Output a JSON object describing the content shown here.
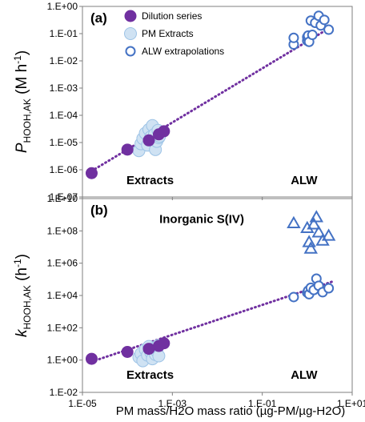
{
  "figure": {
    "xlabel": "PM mass/H2O mass ratio (µg-PM/µg-H2O)",
    "colors": {
      "dilution": "#7030a0",
      "extract_fill": "#cfe2f3",
      "extract_edge": "#9dc3e6",
      "alw": "#4472c4",
      "fit": "#7030a0",
      "axis": "#7f7f7f",
      "grid": "#d9d9d9"
    }
  },
  "chart_data": [
    {
      "type": "scatter",
      "panel_label": "(a)",
      "ylabel": "P HOOH,AK (M h-1)",
      "ylabel_main": "P",
      "ylabel_sub": "HOOH,AK",
      "ylabel_unit": "(M h",
      "ylabel_sup": "-1",
      "ylabel_close": ")",
      "xscale": "log",
      "yscale": "log",
      "xlim": [
        1e-05,
        10
      ],
      "ylim": [
        1e-07,
        1
      ],
      "xticks": [
        1e-05,
        0.001,
        0.1,
        10
      ],
      "xtick_labels": [
        "1.E-05",
        "1.E-03",
        "1.E-01",
        "1.E+01"
      ],
      "yticks": [
        1e-07,
        1e-06,
        1e-05,
        0.0001,
        0.001,
        0.01,
        0.1,
        1
      ],
      "ytick_labels": [
        "1.E-07",
        "1.E-06",
        "1.E-05",
        "1.E-04",
        "1.E-03",
        "1.E-02",
        "1.E-01",
        "1.E+00"
      ],
      "legend_position": "top-left",
      "annotations": [
        {
          "text": "Extracts",
          "x": 0.00032,
          "y": 3e-07
        },
        {
          "text": "ALW",
          "x": 0.85,
          "y": 3e-07
        }
      ],
      "series": [
        {
          "name": "Dilution series",
          "marker": "filled-circle",
          "points": [
            [
              1.6e-05,
              7.5e-07
            ],
            [
              0.0001,
              5.5e-06
            ],
            [
              0.0003,
              1.2e-05
            ],
            [
              0.0005,
              2e-05
            ],
            [
              0.00065,
              2.6e-05
            ]
          ]
        },
        {
          "name": "PM Extracts",
          "marker": "light-circle",
          "points": [
            [
              0.00018,
              5e-06
            ],
            [
              0.0002,
              9e-06
            ],
            [
              0.00022,
              1.4e-05
            ],
            [
              0.00025,
              2.2e-05
            ],
            [
              0.00028,
              8e-06
            ],
            [
              0.0003,
              3e-05
            ],
            [
              0.00033,
              1.6e-05
            ],
            [
              0.00036,
              4.2e-05
            ],
            [
              0.0004,
              2e-05
            ],
            [
              0.00042,
              5.5e-06
            ],
            [
              0.00045,
              1.1e-05
            ],
            [
              0.00048,
              2.8e-05
            ],
            [
              0.0005,
              1.5e-05
            ],
            [
              0.00052,
              1.7e-05
            ]
          ]
        },
        {
          "name": "ALW extrapolations",
          "marker": "open-circle",
          "points": [
            [
              0.5,
              0.04
            ],
            [
              0.5,
              0.07
            ],
            [
              1.0,
              0.055
            ],
            [
              1.0,
              0.075
            ],
            [
              1.05,
              0.085
            ],
            [
              1.1,
              0.05
            ],
            [
              1.2,
              0.3
            ],
            [
              1.3,
              0.09
            ],
            [
              1.5,
              0.25
            ],
            [
              1.8,
              0.45
            ],
            [
              2.0,
              0.2
            ],
            [
              2.4,
              0.32
            ],
            [
              3.0,
              0.14
            ]
          ]
        }
      ],
      "fit_line": {
        "style": "dotted",
        "x": [
          1.6e-05,
          3.5
        ],
        "y": [
          9e-07,
          0.18
        ]
      }
    },
    {
      "type": "scatter",
      "panel_label": "(b)",
      "ylabel": "k HOOH,AK (h-1)",
      "ylabel_main": "k",
      "ylabel_sub": "HOOH,AK",
      "ylabel_unit": "(h",
      "ylabel_sup": "-1",
      "ylabel_close": ")",
      "xscale": "log",
      "yscale": "log",
      "xlim": [
        1e-05,
        10
      ],
      "ylim": [
        0.01,
        10000000000
      ],
      "xticks": [
        1e-05,
        0.001,
        0.1,
        10
      ],
      "xtick_labels": [
        "1.E-05",
        "1.E-03",
        "1.E-01",
        "1.E+01"
      ],
      "yticks": [
        0.01,
        1,
        100,
        10000,
        1000000,
        100000000,
        10000000000
      ],
      "ytick_labels": [
        "1.E-02",
        "1.E+00",
        "1.E+02",
        "1.E+04",
        "1.E+06",
        "1.E+08",
        "1.E+10"
      ],
      "annotations": [
        {
          "text": "Inorganic S(IV)",
          "x": 0.0045,
          "y": 300000000
        },
        {
          "text": "Extracts",
          "x": 0.00032,
          "y": 0.07
        },
        {
          "text": "ALW",
          "x": 0.85,
          "y": 0.07
        }
      ],
      "series": [
        {
          "name": "Dilution series",
          "marker": "filled-circle",
          "points": [
            [
              1.6e-05,
              1.2
            ],
            [
              0.0001,
              3.2
            ],
            [
              0.0003,
              5.0
            ],
            [
              0.0005,
              7.5
            ],
            [
              0.00065,
              11
            ]
          ]
        },
        {
          "name": "PM Extracts",
          "marker": "light-circle",
          "points": [
            [
              0.00018,
              1.5
            ],
            [
              0.0002,
              2.5
            ],
            [
              0.00022,
              0.9
            ],
            [
              0.00025,
              4.5
            ],
            [
              0.00028,
              2.0
            ],
            [
              0.0003,
              7.0
            ],
            [
              0.00033,
              3.0
            ],
            [
              0.00036,
              1.2
            ],
            [
              0.0004,
              5.5
            ],
            [
              0.00042,
              2.2
            ],
            [
              0.00045,
              3.5
            ],
            [
              0.00048,
              8.0
            ],
            [
              0.0005,
              1.8
            ]
          ]
        },
        {
          "name": "ALW extrapolations",
          "marker": "open-circle",
          "points": [
            [
              0.5,
              8000
            ],
            [
              1.0,
              15000
            ],
            [
              1.05,
              20000
            ],
            [
              1.1,
              12000
            ],
            [
              1.2,
              30000
            ],
            [
              1.4,
              22000
            ],
            [
              1.6,
              110000
            ],
            [
              1.8,
              40000
            ],
            [
              2.2,
              16000
            ],
            [
              3.0,
              28000
            ]
          ]
        },
        {
          "name": "Inorganic S(IV)",
          "marker": "open-triangle",
          "points": [
            [
              0.5,
              300000000
            ],
            [
              1.0,
              150000000
            ],
            [
              1.1,
              20000000
            ],
            [
              1.2,
              8000000
            ],
            [
              1.4,
              250000000
            ],
            [
              1.6,
              700000000
            ],
            [
              1.8,
              80000000
            ],
            [
              2.2,
              25000000
            ],
            [
              3.0,
              50000000
            ]
          ]
        }
      ],
      "fit_line": {
        "style": "dotted",
        "x": [
          1.6e-05,
          3.5
        ],
        "y": [
          0.8,
          70000
        ]
      }
    }
  ]
}
